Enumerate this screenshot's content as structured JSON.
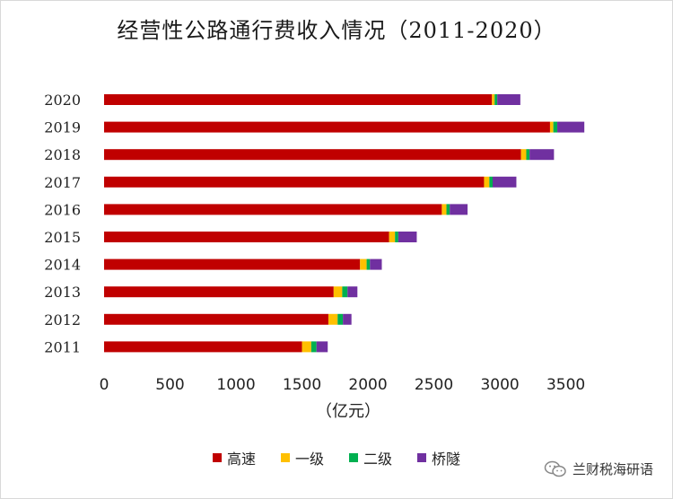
{
  "chart_data": {
    "type": "bar",
    "orientation": "horizontal",
    "stacked": true,
    "title": "经营性公路通行费收入情况（2011-2020）",
    "xlabel": "（亿元）",
    "ylabel": "",
    "xlim": [
      0,
      3700
    ],
    "xticks": [
      0,
      500,
      1000,
      1500,
      2000,
      2500,
      3000,
      3500
    ],
    "grid": false,
    "legend_position": "bottom",
    "categories": [
      "2020",
      "2019",
      "2018",
      "2017",
      "2016",
      "2015",
      "2014",
      "2013",
      "2012",
      "2011"
    ],
    "series": [
      {
        "name": "高速",
        "color": "#c00000",
        "values": [
          2940,
          3380,
          3160,
          2880,
          2560,
          2160,
          1940,
          1740,
          1700,
          1500
        ]
      },
      {
        "name": "一级",
        "color": "#ffc000",
        "values": [
          20,
          25,
          40,
          40,
          35,
          45,
          50,
          65,
          70,
          70
        ]
      },
      {
        "name": "二级",
        "color": "#00b050",
        "values": [
          20,
          30,
          25,
          25,
          25,
          25,
          25,
          40,
          40,
          40
        ]
      },
      {
        "name": "桥隧",
        "color": "#7030a0",
        "values": [
          175,
          205,
          185,
          180,
          135,
          140,
          90,
          75,
          65,
          85
        ]
      }
    ]
  },
  "watermark": {
    "text": "兰财税海研语",
    "icon": "wechat-icon"
  }
}
